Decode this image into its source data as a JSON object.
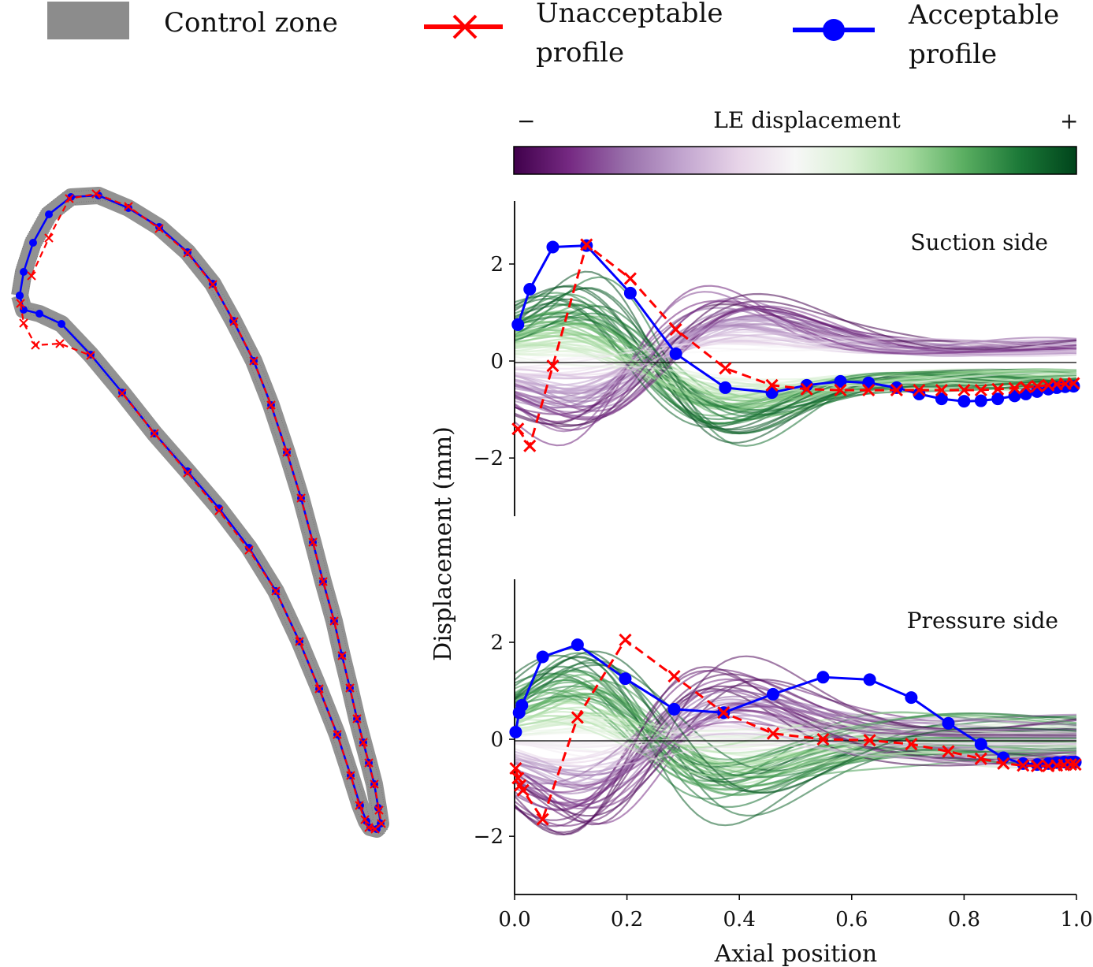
{
  "legend": {
    "items": [
      {
        "label_lines": [
          "Control zone"
        ],
        "style": "patch",
        "color": "#8c8c8c"
      },
      {
        "label_lines": [
          "Unacceptable",
          "profile"
        ],
        "style": "line-x",
        "color": "#ff0000"
      },
      {
        "label_lines": [
          "Acceptable",
          "profile"
        ],
        "style": "line-o",
        "color": "#0000ff"
      }
    ]
  },
  "colorbar": {
    "label": "LE displacement",
    "minus": "−",
    "plus": "+",
    "colormap": "PRGn",
    "stops": [
      "#40004b",
      "#762a83",
      "#9970ab",
      "#c2a5cf",
      "#e7d4e8",
      "#f7f7f7",
      "#d9f0d3",
      "#a6dba0",
      "#5aae61",
      "#1b7837",
      "#00441b"
    ]
  },
  "chart_data": [
    {
      "type": "line",
      "panel": "suction",
      "title": "Suction side",
      "xlabel": "",
      "ylabel": "Displacement (mm)",
      "xlim": [
        0,
        1
      ],
      "ylim": [
        -3.2,
        3.3
      ],
      "yticks": [
        -2,
        0,
        2
      ],
      "ytick_labels": [
        "−2",
        "0",
        "2"
      ],
      "zero_line": true,
      "series": [
        {
          "role": "acceptable",
          "color": "#0000ff",
          "marker": "circle",
          "x": [
            0.006,
            0.027,
            0.068,
            0.128,
            0.206,
            0.287,
            0.375,
            0.458,
            0.52,
            0.58,
            0.63,
            0.68,
            0.72,
            0.76,
            0.8,
            0.83,
            0.86,
            0.89,
            0.91,
            0.93,
            0.95,
            0.965,
            0.98,
            0.995
          ],
          "y": [
            0.75,
            1.48,
            2.35,
            2.38,
            1.4,
            0.15,
            -0.55,
            -0.65,
            -0.5,
            -0.42,
            -0.45,
            -0.55,
            -0.68,
            -0.78,
            -0.83,
            -0.82,
            -0.78,
            -0.72,
            -0.68,
            -0.63,
            -0.58,
            -0.55,
            -0.53,
            -0.52
          ]
        },
        {
          "role": "unacceptable",
          "color": "#ff0000",
          "marker": "x",
          "x": [
            0.006,
            0.027,
            0.068,
            0.128,
            0.206,
            0.287,
            0.375,
            0.458,
            0.52,
            0.58,
            0.63,
            0.68,
            0.72,
            0.76,
            0.8,
            0.83,
            0.86,
            0.89,
            0.91,
            0.93,
            0.95,
            0.965,
            0.98,
            0.995
          ],
          "y": [
            -1.4,
            -1.75,
            -0.1,
            2.4,
            1.7,
            0.65,
            -0.15,
            -0.5,
            -0.58,
            -0.6,
            -0.6,
            -0.6,
            -0.6,
            -0.6,
            -0.6,
            -0.6,
            -0.58,
            -0.56,
            -0.54,
            -0.52,
            -0.5,
            -0.48,
            -0.47,
            -0.46
          ]
        }
      ]
    },
    {
      "type": "line",
      "panel": "pressure",
      "title": "Pressure side",
      "xlabel": "Axial position",
      "ylabel": "Displacement (mm)",
      "xlim": [
        0,
        1
      ],
      "ylim": [
        -3.2,
        3.3
      ],
      "yticks": [
        -2,
        0,
        2
      ],
      "ytick_labels": [
        "−2",
        "0",
        "2"
      ],
      "xticks": [
        0.0,
        0.2,
        0.4,
        0.6,
        0.8,
        1.0
      ],
      "xtick_labels": [
        "0.0",
        "0.2",
        "0.4",
        "0.6",
        "0.8",
        "1.0"
      ],
      "zero_line": true,
      "series": [
        {
          "role": "acceptable",
          "color": "#0000ff",
          "marker": "circle",
          "x": [
            0.002,
            0.008,
            0.013,
            0.05,
            0.112,
            0.197,
            0.284,
            0.372,
            0.46,
            0.549,
            0.632,
            0.706,
            0.772,
            0.83,
            0.87,
            0.905,
            0.93,
            0.95,
            0.965,
            0.978,
            0.99,
            0.998
          ],
          "y": [
            0.15,
            0.55,
            0.7,
            1.7,
            1.95,
            1.25,
            0.62,
            0.55,
            0.93,
            1.28,
            1.23,
            0.86,
            0.33,
            -0.1,
            -0.38,
            -0.5,
            -0.52,
            -0.5,
            -0.48,
            -0.47,
            -0.47,
            -0.47
          ]
        },
        {
          "role": "unacceptable",
          "color": "#ff0000",
          "marker": "x",
          "x": [
            0.002,
            0.006,
            0.01,
            0.015,
            0.05,
            0.112,
            0.197,
            0.284,
            0.372,
            0.46,
            0.549,
            0.632,
            0.706,
            0.772,
            0.83,
            0.87,
            0.905,
            0.93,
            0.95,
            0.965,
            0.978,
            0.99,
            0.998
          ],
          "y": [
            -0.6,
            -0.8,
            -0.95,
            -1.05,
            -1.65,
            0.45,
            2.05,
            1.3,
            0.55,
            0.12,
            0.0,
            -0.02,
            -0.1,
            -0.25,
            -0.4,
            -0.5,
            -0.54,
            -0.55,
            -0.55,
            -0.54,
            -0.53,
            -0.52,
            -0.52
          ]
        }
      ]
    },
    {
      "type": "scatter",
      "panel": "blade",
      "title": "",
      "description_series": [
        {
          "role": "acceptable",
          "color": "#0000ff",
          "marker": "circle",
          "points": [
            [
              25,
              375
            ],
            [
              30,
              345
            ],
            [
              42,
              308
            ],
            [
              62,
              272
            ],
            [
              90,
              250
            ],
            [
              125,
              248
            ],
            [
              163,
              264
            ],
            [
              202,
              288
            ],
            [
              238,
              320
            ],
            [
              270,
              360
            ],
            [
              296,
              407
            ],
            [
              322,
              458
            ],
            [
              344,
              514
            ],
            [
              364,
              574
            ],
            [
              382,
              632
            ],
            [
              397,
              688
            ],
            [
              410,
              738
            ],
            [
              424,
              788
            ],
            [
              434,
              832
            ],
            [
              444,
              873
            ],
            [
              453,
              912
            ],
            [
              461,
              942
            ],
            [
              468,
              968
            ],
            [
              475,
              995
            ],
            [
              480,
              1025
            ],
            [
              483,
              1045
            ],
            [
              478,
              1052
            ],
            [
              470,
              1050
            ],
            [
              465,
              1042
            ],
            [
              457,
              1022
            ],
            [
              445,
              984
            ],
            [
              428,
              932
            ],
            [
              405,
              874
            ],
            [
              380,
              814
            ],
            [
              350,
              750
            ],
            [
              316,
              695
            ],
            [
              278,
              645
            ],
            [
              238,
              598
            ],
            [
              196,
              550
            ],
            [
              155,
              498
            ],
            [
              115,
              450
            ],
            [
              78,
              411
            ],
            [
              50,
              398
            ],
            [
              30,
              393
            ],
            [
              25,
              375
            ]
          ]
        },
        {
          "role": "unacceptable",
          "color": "#ff0000",
          "marker": "x",
          "points": [
            [
              26,
              385
            ],
            [
              30,
              410
            ],
            [
              45,
              438
            ],
            [
              76,
              436
            ],
            [
              115,
              451
            ],
            [
              40,
              350
            ],
            [
              62,
              302
            ],
            [
              88,
              252
            ],
            [
              122,
              246
            ],
            [
              163,
              262
            ],
            [
              202,
              290
            ],
            [
              238,
              321
            ],
            [
              270,
              361
            ],
            [
              297,
              408
            ],
            [
              322,
              458
            ],
            [
              344,
              514
            ],
            [
              364,
              574
            ],
            [
              382,
              632
            ],
            [
              397,
              688
            ],
            [
              410,
              738
            ],
            [
              424,
              788
            ],
            [
              434,
              832
            ],
            [
              444,
              873
            ],
            [
              453,
              912
            ],
            [
              461,
              942
            ],
            [
              468,
              968
            ],
            [
              475,
              995
            ],
            [
              481,
              1028
            ],
            [
              484,
              1045
            ],
            [
              476,
              1052
            ],
            [
              468,
              1050
            ],
            [
              463,
              1040
            ],
            [
              456,
              1022
            ],
            [
              445,
              984
            ],
            [
              428,
              932
            ],
            [
              405,
              874
            ],
            [
              380,
              814
            ],
            [
              350,
              750
            ],
            [
              316,
              698
            ],
            [
              278,
              648
            ],
            [
              238,
              600
            ],
            [
              196,
              550
            ],
            [
              155,
              499
            ]
          ]
        }
      ]
    }
  ]
}
